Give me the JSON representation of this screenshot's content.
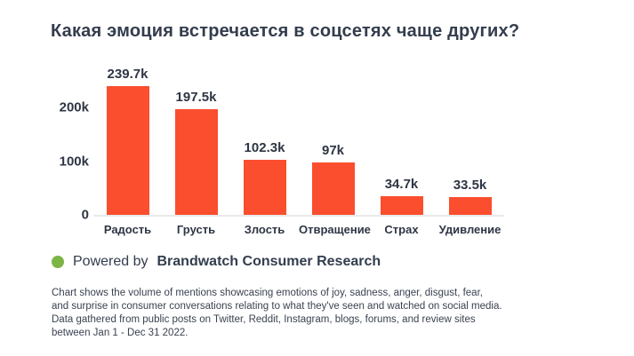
{
  "title": "Какая эмоция встречается в соцсетях чаще других?",
  "chart_data": {
    "type": "bar",
    "title": "Какая эмоция встречается в соцсетях чаще других?",
    "categories": [
      "Радость",
      "Грусть",
      "Злость",
      "Отвращение",
      "Страх",
      "Удивление"
    ],
    "values": [
      239.7,
      197.5,
      102.3,
      97,
      34.7,
      33.5
    ],
    "value_labels": [
      "239.7k",
      "197.5k",
      "102.3k",
      "97k",
      "34.7k",
      "33.5k"
    ],
    "xlabel": "",
    "ylabel": "",
    "ylim": [
      0,
      250
    ],
    "y_ticks": [
      {
        "label": "0",
        "value": 0
      },
      {
        "label": "100k",
        "value": 100
      },
      {
        "label": "200k",
        "value": 200
      }
    ],
    "grid": false,
    "legend": false,
    "bar_color": "#FA4E2E"
  },
  "attribution": {
    "prefix": "Powered by",
    "brand": "Brandwatch Consumer Research",
    "dot_color": "#7CB546"
  },
  "footnote": {
    "lines": [
      "Chart shows the volume of mentions showcasing emotions of joy, sadness, anger, disgust, fear,",
      "and surprise in consumer conversations relating to what they've seen and watched on social media.",
      "Data gathered from public posts on Twitter, Reddit, Instagram, blogs, forums, and review sites",
      "between Jan 1 - Dec 31 2022."
    ]
  },
  "colors": {
    "bar": "#FA4E2E",
    "text_dark": "#333D4D",
    "baseline": "#EAEAEA",
    "dot_green": "#7CB546"
  }
}
